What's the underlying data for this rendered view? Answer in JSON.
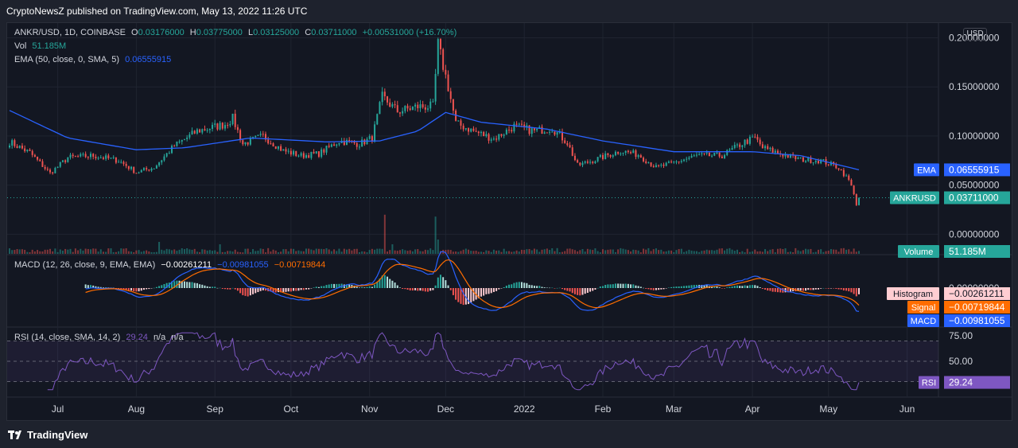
{
  "header": {
    "publisher_text": "CryptoNewsZ published on TradingView.com, May 13, 2022 11:26 UTC"
  },
  "legend": {
    "symbol": "ANKR/USD, 1D, COINBASE",
    "o_label": "O",
    "o": "0.03176000",
    "h_label": "H",
    "h": "0.03775000",
    "l_label": "L",
    "l": "0.03125000",
    "c_label": "C",
    "c": "0.03711000",
    "change": "+0.00531000 (+16.70%)",
    "vol_label": "Vol",
    "vol": "51.185M",
    "ema_label": "EMA (50, close, 0, SMA, 5)",
    "ema": "0.06555915",
    "macd_label": "MACD (12, 26, close, 9, EMA, EMA)",
    "macd_hist": "−0.00261211",
    "macd_macd": "−0.00981055",
    "macd_signal": "−0.00719844",
    "rsi_label": "RSI (14, close, SMA, 14, 2)",
    "rsi_value": "29.24",
    "rsi_na1": "n/a",
    "rsi_na2": "n/a"
  },
  "currency_button": "USD",
  "badges": {
    "ema_label": "EMA",
    "ema_value": "0.06555915",
    "price_label": "ANKRUSD",
    "price_value": "0.03711000",
    "volume_label": "Volume",
    "volume_value": "51.185M",
    "hist_label": "Histogram",
    "hist_value": "−0.00261211",
    "signal_label": "Signal",
    "signal_value": "−0.00719844",
    "macd_label": "MACD",
    "macd_value": "−0.00981055",
    "rsi_label": "RSI",
    "rsi_value": "29.24"
  },
  "colors": {
    "up": "#26a69a",
    "down": "#ef5350",
    "ema": "#2962ff",
    "macd": "#2962ff",
    "signal": "#ff6d00",
    "rsi": "#7e57c2",
    "text": "#d1d4dc",
    "background": "#131722"
  },
  "footer": {
    "brand": "TradingView"
  },
  "chart_data": {
    "type": "candlestick",
    "x_ticks": [
      "Jul",
      "Aug",
      "Sep",
      "Oct",
      "Nov",
      "Dec",
      "2022",
      "Feb",
      "Mar",
      "Apr",
      "May",
      "Jun"
    ],
    "price_axis": {
      "ticks": [
        "0.20000000",
        "0.15000000",
        "0.10000000",
        "0.05000000",
        "0.00000000"
      ],
      "ylim": [
        -0.02,
        0.215
      ]
    },
    "macd_axis": {
      "ticks": [
        "0.00000000"
      ]
    },
    "rsi_axis": {
      "ticks": [
        "75.00",
        "50.00"
      ],
      "bands": [
        30,
        70
      ]
    },
    "price_anchors": [
      [
        "2021-06-12",
        0.094
      ],
      [
        "2021-06-20",
        0.083
      ],
      [
        "2021-06-28",
        0.062
      ],
      [
        "2021-07-05",
        0.078
      ],
      [
        "2021-07-15",
        0.08
      ],
      [
        "2021-07-25",
        0.075
      ],
      [
        "2021-08-01",
        0.063
      ],
      [
        "2021-08-08",
        0.068
      ],
      [
        "2021-08-16",
        0.09
      ],
      [
        "2021-08-25",
        0.105
      ],
      [
        "2021-09-05",
        0.112
      ],
      [
        "2021-09-08",
        0.118
      ],
      [
        "2021-09-12",
        0.092
      ],
      [
        "2021-09-20",
        0.1
      ],
      [
        "2021-09-28",
        0.085
      ],
      [
        "2021-10-05",
        0.08
      ],
      [
        "2021-10-12",
        0.082
      ],
      [
        "2021-10-20",
        0.095
      ],
      [
        "2021-10-28",
        0.092
      ],
      [
        "2021-11-02",
        0.098
      ],
      [
        "2021-11-06",
        0.14
      ],
      [
        "2021-11-12",
        0.125
      ],
      [
        "2021-11-20",
        0.13
      ],
      [
        "2021-11-26",
        0.13
      ],
      [
        "2021-11-28",
        0.193
      ],
      [
        "2021-12-02",
        0.15
      ],
      [
        "2021-12-05",
        0.113
      ],
      [
        "2021-12-12",
        0.105
      ],
      [
        "2021-12-20",
        0.097
      ],
      [
        "2021-12-28",
        0.11
      ],
      [
        "2022-01-05",
        0.105
      ],
      [
        "2022-01-12",
        0.108
      ],
      [
        "2022-01-18",
        0.093
      ],
      [
        "2022-01-22",
        0.07
      ],
      [
        "2022-01-28",
        0.075
      ],
      [
        "2022-02-08",
        0.085
      ],
      [
        "2022-02-15",
        0.081
      ],
      [
        "2022-02-22",
        0.068
      ],
      [
        "2022-02-28",
        0.072
      ],
      [
        "2022-03-10",
        0.08
      ],
      [
        "2022-03-20",
        0.08
      ],
      [
        "2022-03-29",
        0.094
      ],
      [
        "2022-04-02",
        0.098
      ],
      [
        "2022-04-05",
        0.088
      ],
      [
        "2022-04-12",
        0.082
      ],
      [
        "2022-04-20",
        0.076
      ],
      [
        "2022-04-28",
        0.075
      ],
      [
        "2022-05-05",
        0.068
      ],
      [
        "2022-05-09",
        0.055
      ],
      [
        "2022-05-11",
        0.042
      ],
      [
        "2022-05-12",
        0.03
      ],
      [
        "2022-05-13",
        0.037
      ]
    ],
    "ema_anchors": [
      [
        "2021-06-12",
        0.126
      ],
      [
        "2021-07-05",
        0.098
      ],
      [
        "2021-08-01",
        0.086
      ],
      [
        "2021-08-20",
        0.088
      ],
      [
        "2021-09-15",
        0.098
      ],
      [
        "2021-10-15",
        0.094
      ],
      [
        "2021-11-05",
        0.095
      ],
      [
        "2021-11-20",
        0.105
      ],
      [
        "2021-12-01",
        0.124
      ],
      [
        "2021-12-15",
        0.114
      ],
      [
        "2022-01-10",
        0.107
      ],
      [
        "2022-02-01",
        0.095
      ],
      [
        "2022-03-01",
        0.084
      ],
      [
        "2022-04-01",
        0.084
      ],
      [
        "2022-04-20",
        0.08
      ],
      [
        "2022-05-13",
        0.0656
      ]
    ],
    "volume_spikes": [
      [
        "2021-11-07",
        0.82
      ],
      [
        "2021-11-27",
        0.78
      ],
      [
        "2021-11-10",
        0.2
      ],
      [
        "2021-08-10",
        0.25
      ],
      [
        "2021-09-03",
        0.2
      ],
      [
        "2021-11-28",
        0.3
      ]
    ],
    "last": {
      "open": 0.03176,
      "high": 0.03775,
      "low": 0.03125,
      "close": 0.03711,
      "volume": "51.185M",
      "ema": 0.06555915,
      "macd": -0.00981055,
      "signal": -0.00719844,
      "hist": -0.00261211,
      "rsi": 29.24
    }
  }
}
